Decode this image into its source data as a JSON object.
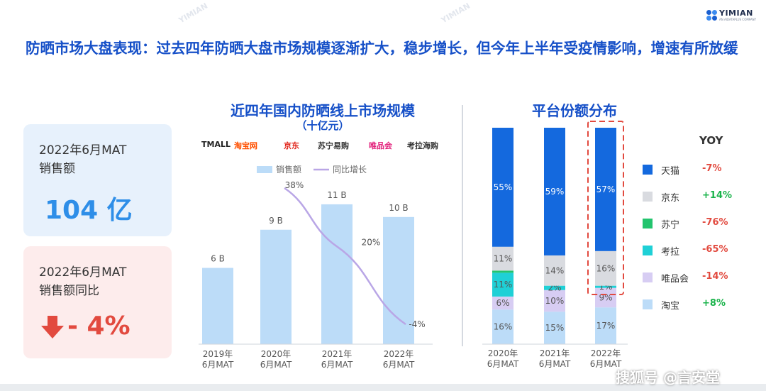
{
  "brand": {
    "name": "YIMIAN",
    "tagline": "AN AIDATAPLUS COMPANY"
  },
  "headline": "防晒市场大盘表现：过去四年防晒大盘市场规模逐渐扩大，稳步增长，但今年上半年受疫情影响，增速有所放缓",
  "kpis": [
    {
      "label_line1": "2022年6月MAT",
      "label_line2": "销售额",
      "value": "104 亿"
    },
    {
      "label_line1": "2022年6月MAT",
      "label_line2": "销售额同比",
      "value": "- 4%"
    }
  ],
  "platforms": [
    "TMALL",
    "淘宝网",
    "京东",
    "苏宁易购",
    "唯品会",
    "考拉海购"
  ],
  "watermark": "搜狐号 @言安堂",
  "colors": {
    "title_blue": "#1650c8",
    "bar_light": "#bcdcf8",
    "line_purple": "#b9a6e6",
    "up_green": "#19b34a",
    "down_red": "#e24a3f"
  },
  "chart_data": [
    {
      "type": "bar",
      "title": "近四年国内防晒线上市场规模",
      "subtitle": "（十亿元）",
      "categories": [
        "2019年\n6月MAT",
        "2020年\n6月MAT",
        "2021年\n6月MAT",
        "2022年\n6月MAT"
      ],
      "series": [
        {
          "name": "销售额",
          "type": "bar",
          "values": [
            6,
            9,
            11,
            10
          ],
          "labels": [
            "6 B",
            "9 B",
            "11 B",
            "10 B"
          ]
        },
        {
          "name": "同比增长",
          "type": "line",
          "values": [
            null,
            38,
            20,
            -4
          ],
          "labels": [
            "",
            "38%",
            "20%",
            "-4%"
          ]
        }
      ],
      "ylim": [
        0,
        12
      ],
      "legend": "top",
      "grid": false
    },
    {
      "type": "bar",
      "stacked": true,
      "title": "平台份额分布",
      "categories": [
        "2020年\n6月MAT",
        "2021年\n6月MAT",
        "2022年\n6月MAT"
      ],
      "series": [
        {
          "name": "淘宝",
          "values": [
            16,
            15,
            17
          ],
          "labels": [
            "16%",
            "15%",
            "17%"
          ],
          "yoy": "+8%"
        },
        {
          "name": "唯品会",
          "values": [
            6,
            10,
            9
          ],
          "labels": [
            "6%",
            "10%",
            "9%"
          ],
          "yoy": "-14%"
        },
        {
          "name": "考拉",
          "values": [
            11,
            2,
            1
          ],
          "labels": [
            "11%",
            "2%",
            "1%"
          ],
          "yoy": "-65%"
        },
        {
          "name": "苏宁",
          "values": [
            1,
            0,
            0
          ],
          "labels": [
            "",
            "",
            ""
          ],
          "yoy": "-76%"
        },
        {
          "name": "京东",
          "values": [
            11,
            14,
            16
          ],
          "labels": [
            "11%",
            "14%",
            "16%"
          ],
          "yoy": "+14%"
        },
        {
          "name": "天猫",
          "values": [
            55,
            59,
            57
          ],
          "labels": [
            "55%",
            "59%",
            "57%"
          ],
          "yoy": "-7%"
        }
      ],
      "yoy_header": "YOY",
      "highlight": "2022年\n6月MAT",
      "ylim": [
        0,
        100
      ],
      "legend": "right"
    }
  ]
}
